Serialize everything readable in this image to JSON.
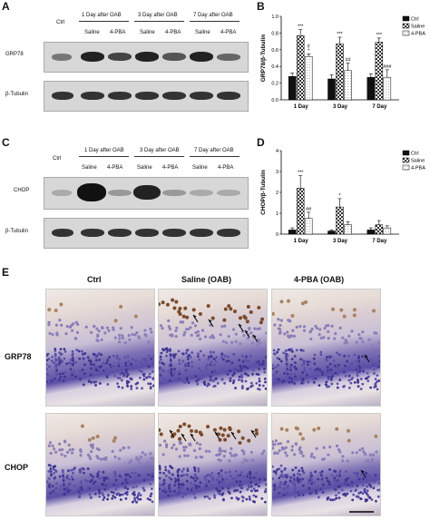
{
  "panels": {
    "A": {
      "letter": "A",
      "ctrl": "Ctrl",
      "groups": [
        "1 Day after OAB",
        "3 Day after OAB",
        "7 Day after OAB"
      ],
      "treat": [
        "Saline",
        "4-PBA"
      ],
      "rows": [
        "GRP78",
        "β-Tubulin"
      ]
    },
    "C": {
      "letter": "C",
      "ctrl": "Ctrl",
      "groups": [
        "1 Day after OAB",
        "3 Day after OAB",
        "7 Day after OAB"
      ],
      "treat": [
        "Saline",
        "4-PBA"
      ],
      "rows": [
        "CHOP",
        "β-Tubulin"
      ]
    },
    "E": {
      "letter": "E",
      "columns": [
        "Ctrl",
        "Saline (OAB)",
        "4-PBA (OAB)"
      ],
      "rows": [
        "GRP78",
        "CHOP"
      ]
    }
  },
  "chart_data": [
    {
      "panel": "B",
      "type": "bar",
      "categories": [
        "1 Day",
        "3 Day",
        "7 Day"
      ],
      "ylabel": "GRP78/β-Tubulin",
      "ylim": [
        0,
        1.0
      ],
      "yticks": [
        "0.0",
        "0.2",
        "0.4",
        "0.6",
        "0.8",
        "1.0"
      ],
      "legend_position": "top-right",
      "series": [
        {
          "name": "Ctrl",
          "values": [
            0.28,
            0.25,
            0.27
          ],
          "errors": [
            0.04,
            0.05,
            0.04
          ]
        },
        {
          "name": "Saline",
          "values": [
            0.77,
            0.67,
            0.69
          ],
          "errors": [
            0.07,
            0.08,
            0.05
          ]
        },
        {
          "name": "4-PBA",
          "values": [
            0.52,
            0.35,
            0.27
          ],
          "errors": [
            0.03,
            0.09,
            0.09
          ]
        }
      ],
      "annotations": [
        {
          "category": 0,
          "series": 1,
          "text": "***"
        },
        {
          "category": 0,
          "series": 2,
          "text": "*"
        },
        {
          "category": 0,
          "series": 2,
          "text": "#"
        },
        {
          "category": 1,
          "series": 1,
          "text": "***"
        },
        {
          "category": 1,
          "series": 2,
          "text": "##"
        },
        {
          "category": 2,
          "series": 1,
          "text": "***"
        },
        {
          "category": 2,
          "series": 2,
          "text": "###"
        }
      ]
    },
    {
      "panel": "D",
      "type": "bar",
      "categories": [
        "1 Day",
        "3 Day",
        "7 Day"
      ],
      "ylabel": "CHOP/β-Tubulin",
      "ylim": [
        0,
        4
      ],
      "yticks": [
        "0",
        "1",
        "2",
        "3",
        "4"
      ],
      "legend_position": "top-right",
      "series": [
        {
          "name": "Ctrl",
          "values": [
            0.2,
            0.15,
            0.2
          ],
          "errors": [
            0.1,
            0.05,
            0.1
          ]
        },
        {
          "name": "Saline",
          "values": [
            2.2,
            1.3,
            0.45
          ],
          "errors": [
            0.6,
            0.4,
            0.2
          ]
        },
        {
          "name": "4-PBA",
          "values": [
            0.75,
            0.45,
            0.3
          ],
          "errors": [
            0.3,
            0.15,
            0.1
          ]
        }
      ],
      "annotations": [
        {
          "category": 0,
          "series": 1,
          "text": "***"
        },
        {
          "category": 0,
          "series": 2,
          "text": "##"
        },
        {
          "category": 1,
          "series": 1,
          "text": "*"
        }
      ]
    }
  ]
}
